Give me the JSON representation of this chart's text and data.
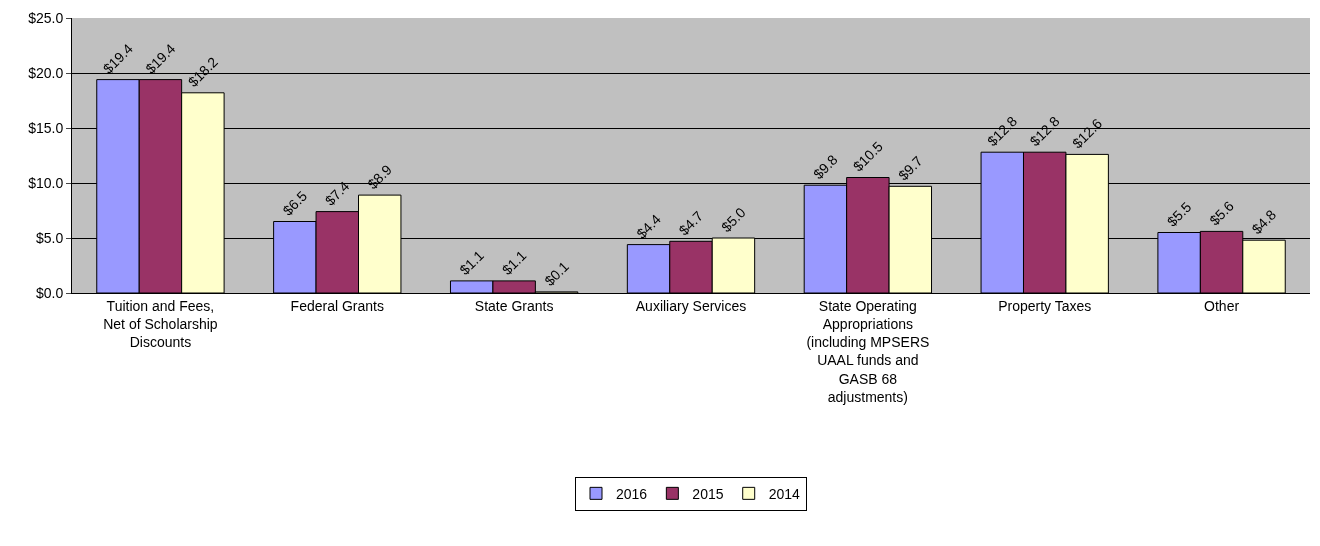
{
  "chart_data": {
    "type": "bar",
    "categories": [
      "Tuition and Fees, Net of Scholarship Discounts",
      "Federal Grants",
      "State Grants",
      "Auxiliary Services",
      "State Operating Appropriations (including MPSERS UAAL funds and GASB 68 adjustments)",
      "Property Taxes",
      "Other"
    ],
    "series": [
      {
        "name": "2016",
        "color": "#9999ff",
        "values": [
          19.4,
          6.5,
          1.1,
          4.4,
          9.8,
          12.8,
          5.5
        ],
        "value_labels": [
          "$19.4",
          "$6.5",
          "$1.1",
          "$4.4",
          "$9.8",
          "$12.8",
          "$5.5"
        ]
      },
      {
        "name": "2015",
        "color": "#993366",
        "values": [
          19.4,
          7.4,
          1.1,
          4.7,
          10.5,
          12.8,
          5.6
        ],
        "value_labels": [
          "$19.4",
          "$7.4",
          "$1.1",
          "$4.7",
          "$10.5",
          "$12.8",
          "$5.6"
        ]
      },
      {
        "name": "2014",
        "color": "#ffffcc",
        "values": [
          18.2,
          8.9,
          0.1,
          5.0,
          9.7,
          12.6,
          4.8
        ],
        "value_labels": [
          "$18.2",
          "$8.9",
          "$0.1",
          "$5.0",
          "$9.7",
          "$12.6",
          "$4.8"
        ]
      }
    ],
    "ylim": [
      0,
      25
    ],
    "yticks": [
      {
        "value": 0,
        "label": "$0.0"
      },
      {
        "value": 5,
        "label": "$5.0"
      },
      {
        "value": 10,
        "label": "$10.0"
      },
      {
        "value": 15,
        "label": "$15.0"
      },
      {
        "value": 20,
        "label": "$20.0"
      },
      {
        "value": 25,
        "label": "$25.0"
      }
    ],
    "grid": "y",
    "legend": "bottom"
  }
}
